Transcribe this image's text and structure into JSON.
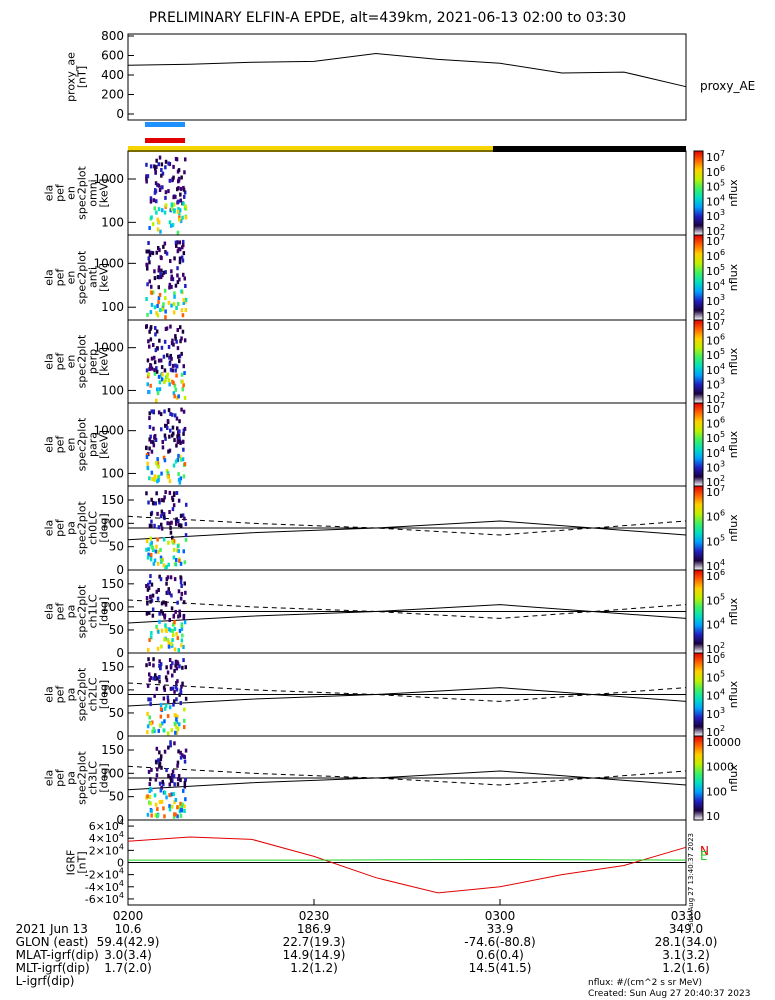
{
  "title": "PRELIMINARY ELFIN-A EPDE, alt=439km, 2021-06-13 02:00 to 03:30",
  "panels": [
    {
      "ylabel": [
        "proxy_ae",
        "[nT]"
      ],
      "series_label": "proxy_AE"
    },
    {
      "ylabel": [
        "ela",
        "pef",
        "en",
        "spec2plot",
        "omni",
        "[keV]"
      ]
    },
    {
      "ylabel": [
        "ela",
        "pef",
        "en",
        "spec2plot",
        "anti",
        "[keV]"
      ]
    },
    {
      "ylabel": [
        "ela",
        "pef",
        "en",
        "spec2plot",
        "perp",
        "[keV]"
      ]
    },
    {
      "ylabel": [
        "ela",
        "pef",
        "en",
        "spec2plot",
        "para",
        "[keV]"
      ]
    },
    {
      "ylabel": [
        "ela",
        "pef",
        "pa",
        "spec2plot",
        "ch0LC",
        "[deg]"
      ]
    },
    {
      "ylabel": [
        "ela",
        "pef",
        "pa",
        "spec2plot",
        "ch1LC",
        "[deg]"
      ]
    },
    {
      "ylabel": [
        "ela",
        "pef",
        "pa",
        "spec2plot",
        "ch2LC",
        "[deg]"
      ]
    },
    {
      "ylabel": [
        "ela",
        "pef",
        "pa",
        "spec2plot",
        "ch3LC",
        "[deg]"
      ]
    },
    {
      "ylabel": [
        "IGRF",
        "[nT]"
      ],
      "legend": [
        "N",
        "E"
      ]
    }
  ],
  "colorbar_label": "nflux",
  "colors": {
    "yellow": "#f5d400",
    "black": "#000000",
    "blue_bar": "#1e90ff",
    "red_bar": "#e00000",
    "n_comp": "#e00000",
    "e_comp": "#20d020",
    "blue_comp": "#0000cc"
  },
  "footer": {
    "rows": [
      {
        "label": "2021 Jun 13",
        "values": [
          "0200",
          "0230",
          "0300",
          "0330"
        ]
      },
      {
        "label": "GLON (east)",
        "values": [
          "10.6",
          "186.9",
          "33.9",
          "349.0"
        ]
      },
      {
        "label": "MLAT-igrf(dip)",
        "values": [
          "59.4(42.9)",
          "22.7(19.3)",
          "-74.6(-80.8)",
          "28.1(34.0)"
        ]
      },
      {
        "label": "MLT-igrf(dip)",
        "values": [
          "3.0(3.4)",
          "14.9(14.9)",
          "0.6(0.4)",
          "3.1(3.2)"
        ]
      },
      {
        "label": "L-igrf(dip)",
        "values": [
          "1.7(2.0)",
          "1.2(1.2)",
          "14.5(41.5)",
          "1.2(1.6)"
        ]
      }
    ],
    "units_note": "nflux: #/(cm^2 s sr MeV)",
    "created": "Created: Sun Aug 27 20:40:37 2023",
    "side_stamp": "Sun Aug 27 13:40:37 2023"
  },
  "chart_data": [
    {
      "type": "line",
      "name": "proxy_AE",
      "ylim": [
        0,
        800
      ],
      "yticks": [
        0,
        200,
        400,
        600,
        800
      ],
      "x_minutes": [
        0,
        10,
        20,
        30,
        40,
        50,
        60,
        70,
        80,
        90
      ],
      "values": [
        500,
        510,
        530,
        540,
        620,
        560,
        520,
        420,
        430,
        280
      ]
    },
    {
      "type": "heatmap",
      "name": "omni",
      "y_scale": "log",
      "yticks": [
        100,
        1000
      ]
    },
    {
      "type": "heatmap",
      "name": "anti",
      "y_scale": "log",
      "yticks": [
        100,
        1000
      ]
    },
    {
      "type": "heatmap",
      "name": "perp",
      "y_scale": "log",
      "yticks": [
        100,
        1000
      ]
    },
    {
      "type": "heatmap",
      "name": "para",
      "y_scale": "log",
      "yticks": [
        100,
        1000
      ]
    },
    {
      "type": "heatmap",
      "name": "ch0LC",
      "ylim": [
        0,
        180
      ],
      "yticks": [
        0,
        50,
        100,
        150
      ]
    },
    {
      "type": "heatmap",
      "name": "ch1LC",
      "ylim": [
        0,
        180
      ],
      "yticks": [
        0,
        50,
        100,
        150
      ]
    },
    {
      "type": "heatmap",
      "name": "ch2LC",
      "ylim": [
        0,
        180
      ],
      "yticks": [
        0,
        50,
        100,
        150
      ]
    },
    {
      "type": "heatmap",
      "name": "ch3LC",
      "ylim": [
        0,
        180
      ],
      "yticks": [
        0,
        50,
        100,
        150
      ]
    },
    {
      "type": "line",
      "name": "IGRF",
      "ylim": [
        -70000,
        70000
      ],
      "yticks": [
        "-6x10^4",
        "-4x10^4",
        "-2x10^4",
        "0",
        "2x10^4",
        "4x10^4",
        "6x10^4"
      ],
      "series": [
        {
          "name": "N",
          "x_minutes": [
            0,
            10,
            20,
            30,
            40,
            50,
            60,
            70,
            80,
            90
          ],
          "values": [
            35000,
            42000,
            38000,
            10000,
            -25000,
            -50000,
            -40000,
            -20000,
            -5000,
            25000
          ]
        },
        {
          "name": "E",
          "x_minutes": [
            0,
            30,
            60,
            90
          ],
          "values": [
            4000,
            4000,
            5000,
            4000
          ]
        }
      ]
    }
  ],
  "colorbars": [
    {
      "max_label": "10^7",
      "labels": [
        "10^7",
        "10^6",
        "10^5",
        "10^4",
        "10^3",
        "10^2"
      ]
    },
    {
      "labels": [
        "10^7",
        "10^6",
        "10^5",
        "10^4",
        "10^3",
        "10^2"
      ]
    },
    {
      "labels": [
        "10^7",
        "10^6",
        "10^5",
        "10^4",
        "10^3",
        "10^2"
      ]
    },
    {
      "labels": [
        "10^7",
        "10^6",
        "10^5",
        "10^4",
        "10^3",
        "10^2"
      ]
    },
    {
      "labels": [
        "10^7",
        "10^6",
        "10^5",
        "10^4"
      ]
    },
    {
      "labels": [
        "10^6",
        "10^5",
        "10^4",
        "10^2"
      ]
    },
    {
      "labels": [
        "10^6",
        "10^5",
        "10^4",
        "10^3",
        "10^2"
      ]
    },
    {
      "labels": [
        "10000",
        "1000",
        "100",
        "10"
      ]
    }
  ]
}
